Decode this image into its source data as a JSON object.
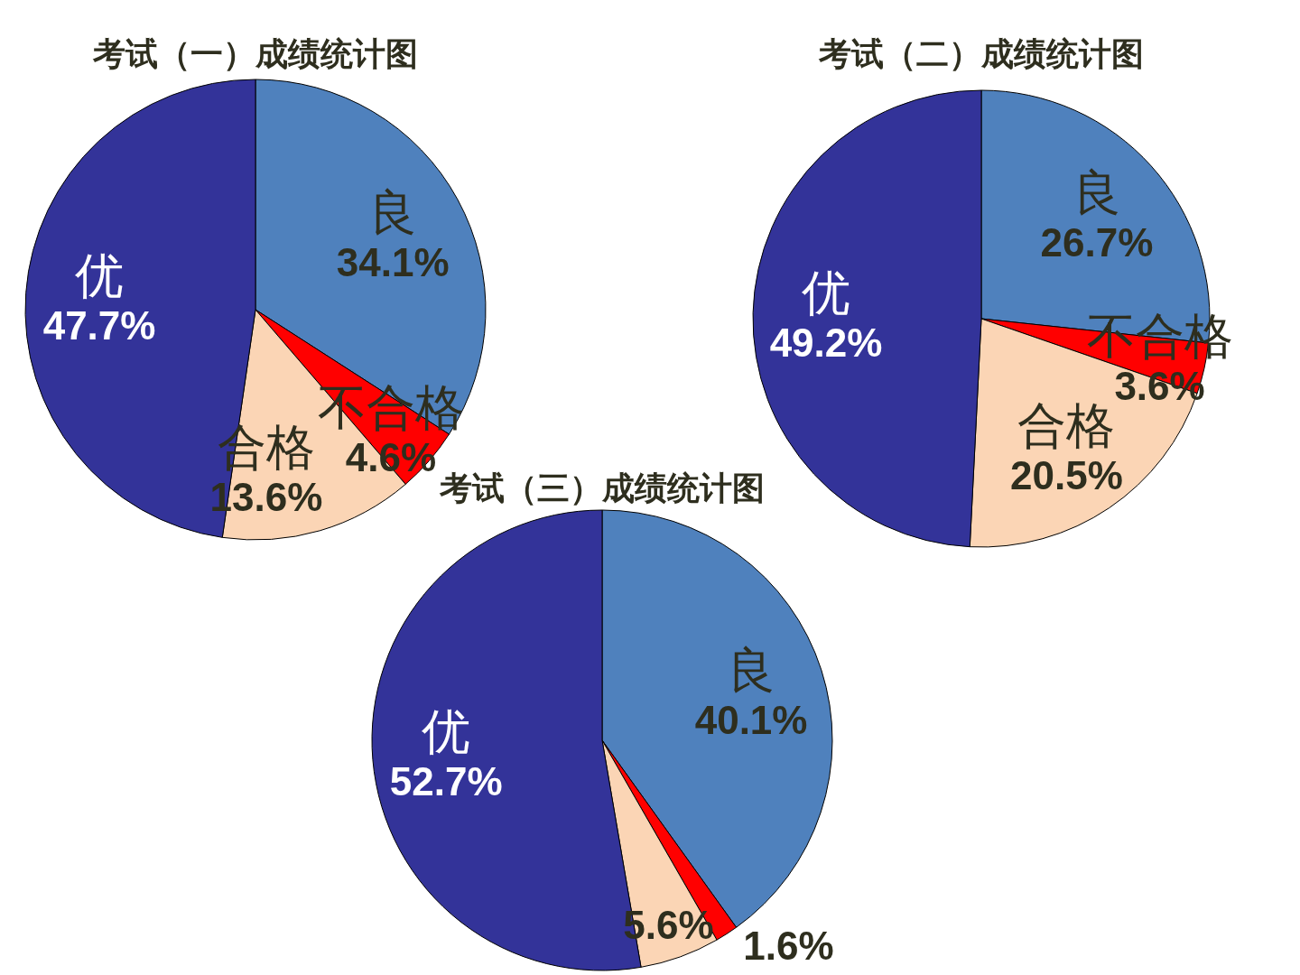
{
  "chart_data": [
    {
      "type": "pie",
      "title": "考试（一）成绩统计图",
      "categories": [
        "良",
        "不合格",
        "合格",
        "优"
      ],
      "values": [
        34.1,
        4.6,
        13.6,
        47.7
      ],
      "colors": [
        "#4f81bd",
        "#ff0000",
        "#fbd5b5",
        "#333399"
      ],
      "value_labels": [
        "34.1%",
        "4.6%",
        "13.6%",
        "47.7%"
      ]
    },
    {
      "type": "pie",
      "title": "考试（二）成绩统计图",
      "categories": [
        "良",
        "不合格",
        "合格",
        "优"
      ],
      "values": [
        26.7,
        3.6,
        20.5,
        49.2
      ],
      "colors": [
        "#4f81bd",
        "#ff0000",
        "#fbd5b5",
        "#333399"
      ],
      "value_labels": [
        "26.7%",
        "3.6%",
        "20.5%",
        "49.2%"
      ]
    },
    {
      "type": "pie",
      "title": "考试（三）成绩统计图",
      "categories": [
        "良",
        null,
        null,
        "优"
      ],
      "values": [
        40.1,
        1.6,
        5.6,
        52.7
      ],
      "colors": [
        "#4f81bd",
        "#ff0000",
        "#fbd5b5",
        "#333399"
      ],
      "value_labels": [
        "40.1%",
        "1.6%",
        "5.6%",
        "52.7%"
      ]
    }
  ]
}
